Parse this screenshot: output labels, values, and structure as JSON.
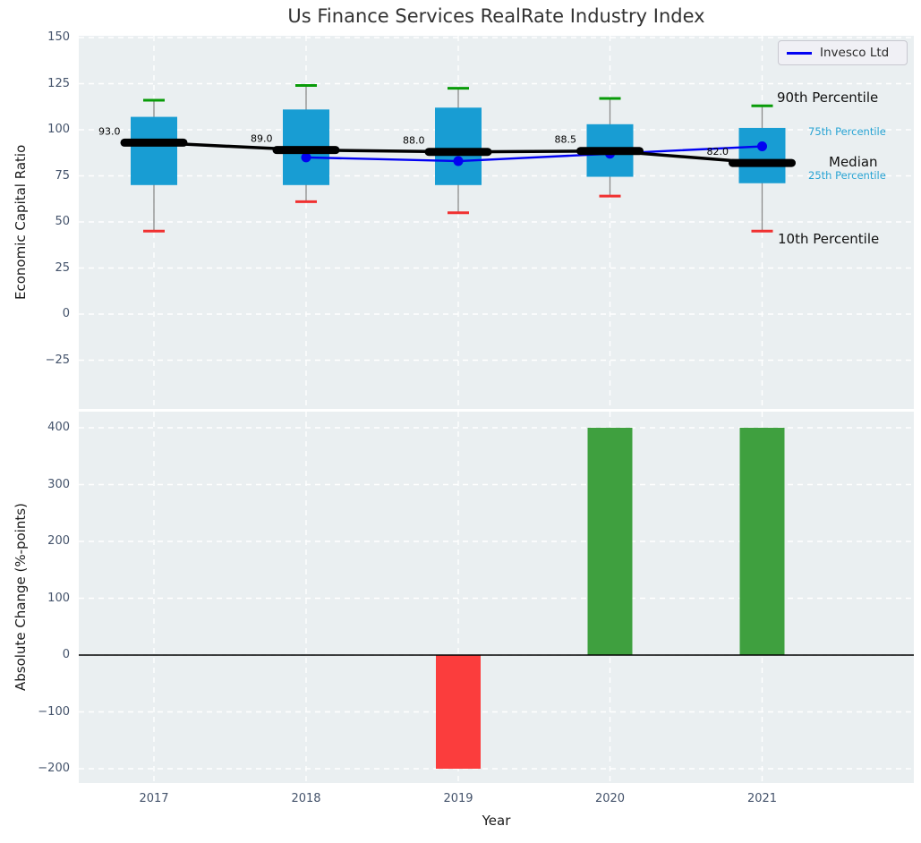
{
  "figure": {
    "title": "Us Finance Services RealRate Industry Index",
    "background": "#ffffff",
    "plot_background": "#eaeff1",
    "grid_color": "#ffffff",
    "tick_color": "#44536b"
  },
  "legend": {
    "label": "Invesco Ltd",
    "line_color": "#0202f2"
  },
  "annotations": {
    "p90": "90th Percentile",
    "p75": "75th Percentile",
    "median": "Median",
    "p25": "25th Percentile",
    "p10": "10th Percentile",
    "accent_color": "#28a3d3"
  },
  "chart_data": [
    {
      "type": "box",
      "title": "Us Finance Services RealRate Industry Index",
      "ylabel": "Economic Capital Ratio",
      "x": [
        2017,
        2018,
        2019,
        2020,
        2021
      ],
      "yticks": [
        150,
        125,
        100,
        75,
        50,
        25,
        0,
        -25
      ],
      "ylim": [
        -51,
        151
      ],
      "grid": true,
      "legend_position": "upper right",
      "box_color": "#189dd3",
      "whisker_color": "#8a8a8a",
      "series": [
        {
          "name": "90th Percentile",
          "values": [
            116,
            124,
            122.5,
            117,
            113
          ],
          "color": "#089b08"
        },
        {
          "name": "75th Percentile",
          "values": [
            107,
            111,
            112,
            103,
            101
          ],
          "color": "#189dd3"
        },
        {
          "name": "Median",
          "values": [
            93.0,
            89.0,
            88.0,
            88.5,
            82.0
          ],
          "color": "#000000"
        },
        {
          "name": "25th Percentile",
          "values": [
            70,
            70,
            70,
            74.5,
            71
          ],
          "color": "#189dd3"
        },
        {
          "name": "10th Percentile",
          "values": [
            45,
            61,
            55,
            64,
            45
          ],
          "color": "#f03030"
        },
        {
          "name": "Invesco Ltd",
          "values": [
            null,
            85,
            83,
            87,
            91
          ],
          "color": "#0202f2"
        }
      ],
      "median_labels": [
        "93.0",
        "89.0",
        "88.0",
        "88.5",
        "82.0"
      ]
    },
    {
      "type": "bar",
      "ylabel": "Absolute Change (%-points)",
      "xlabel": "Year",
      "categories": [
        2017,
        2018,
        2019,
        2020,
        2021
      ],
      "values": [
        null,
        null,
        -200,
        400,
        400
      ],
      "bar_colors": [
        null,
        null,
        "#fb3d3d",
        "#3fa03f",
        "#3fa03f"
      ],
      "yticks": [
        400,
        300,
        200,
        100,
        0,
        -100,
        -200
      ],
      "ylim": [
        -225,
        430
      ],
      "grid": true,
      "zero_line": true
    }
  ]
}
